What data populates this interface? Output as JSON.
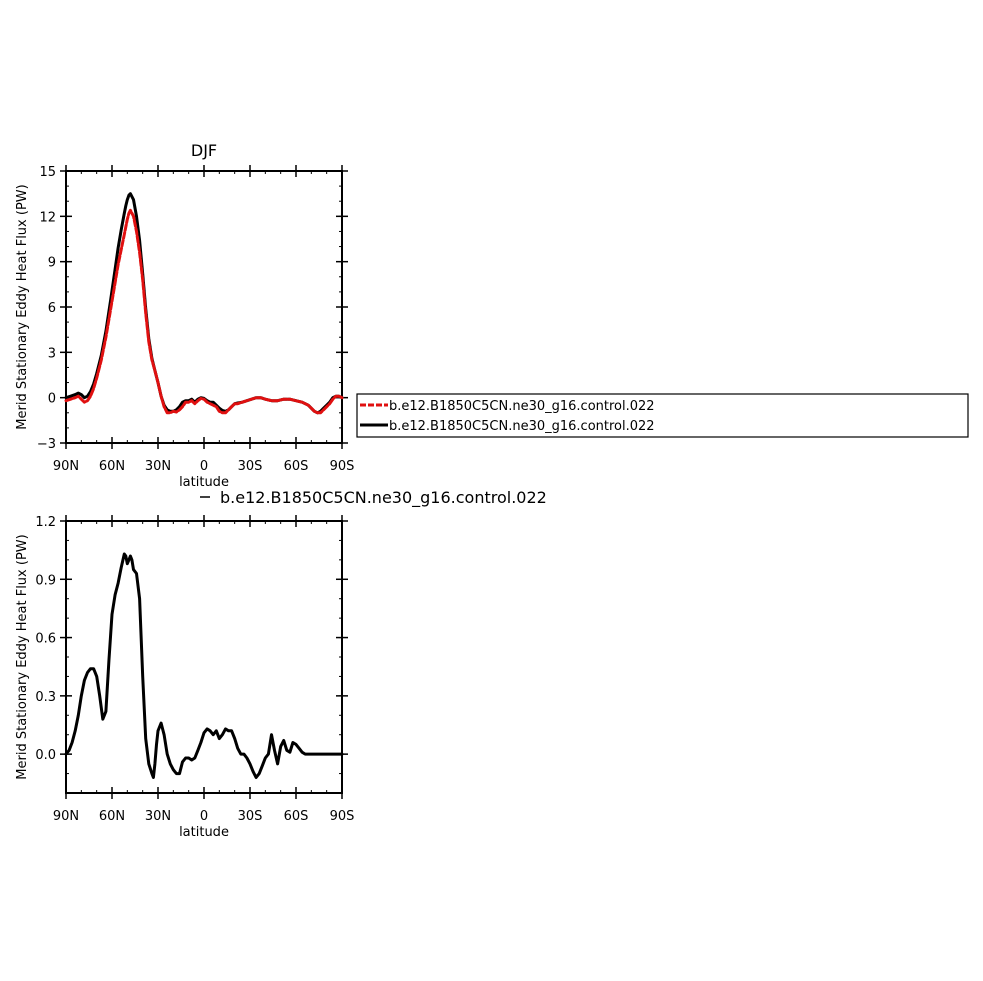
{
  "colors": {
    "ctrl_red": "#e01010",
    "ctrl_black": "#000000"
  },
  "chart_data": [
    {
      "type": "line",
      "title": "DJF",
      "xlabel": "latitude",
      "ylabel": "Merid Stationary Eddy Heat Flux (PW)",
      "xlim": [
        90,
        -90
      ],
      "ylim": [
        -3,
        15
      ],
      "xticks": [
        90,
        60,
        30,
        0,
        -30,
        -60,
        -90
      ],
      "xticklabels": [
        "90N",
        "60N",
        "30N",
        "0",
        "30S",
        "60S",
        "90S"
      ],
      "yticks": [
        -3,
        0,
        3,
        6,
        9,
        12,
        15
      ],
      "yticklabels": [
        "−3",
        "0",
        "3",
        "6",
        "9",
        "12",
        "15"
      ],
      "grid": false,
      "legend_position": "right",
      "series": [
        {
          "name": "b.e12.B1850C5CN.ne30_g16.control.022",
          "color": "#e01010",
          "dash": "dashed",
          "x": [
            90,
            87,
            84,
            82,
            80,
            78,
            76,
            74,
            72,
            70,
            67,
            64,
            61,
            58,
            56,
            54,
            52,
            51,
            50,
            49,
            48,
            46,
            44,
            42,
            40,
            38,
            36,
            34,
            32,
            30,
            28,
            26,
            24,
            22,
            20,
            18,
            16,
            14,
            12,
            10,
            8,
            6,
            4,
            2,
            0,
            -2,
            -4,
            -6,
            -8,
            -10,
            -12,
            -14,
            -16,
            -18,
            -20,
            -22,
            -25,
            -28,
            -31,
            -34,
            -37,
            -40,
            -44,
            -48,
            -52,
            -56,
            -60,
            -64,
            -68,
            -70,
            -72,
            -74,
            -76,
            -78,
            -80,
            -82,
            -84,
            -86,
            -88,
            -90
          ],
          "y": [
            -0.2,
            -0.1,
            0.0,
            0.1,
            -0.1,
            -0.3,
            -0.2,
            0.1,
            0.6,
            1.3,
            2.5,
            4.0,
            5.8,
            7.6,
            8.8,
            9.8,
            10.8,
            11.3,
            11.8,
            12.2,
            12.4,
            12.0,
            11.0,
            9.6,
            7.8,
            5.6,
            3.7,
            2.5,
            1.8,
            1.0,
            0.1,
            -0.6,
            -1.0,
            -1.0,
            -0.9,
            -0.95,
            -0.8,
            -0.6,
            -0.3,
            -0.3,
            -0.2,
            -0.4,
            -0.2,
            -0.05,
            -0.1,
            -0.3,
            -0.4,
            -0.5,
            -0.6,
            -0.9,
            -1.0,
            -1.0,
            -0.8,
            -0.6,
            -0.4,
            -0.4,
            -0.3,
            -0.2,
            -0.1,
            0.0,
            0.0,
            -0.1,
            -0.2,
            -0.2,
            -0.1,
            -0.1,
            -0.2,
            -0.3,
            -0.5,
            -0.7,
            -0.9,
            -1.0,
            -1.0,
            -0.8,
            -0.6,
            -0.4,
            -0.1,
            0.1,
            0.1,
            0.0
          ]
        },
        {
          "name": "b.e12.B1850C5CN.ne30_g16.control.022",
          "color": "#000000",
          "dash": "solid",
          "x": [
            90,
            87,
            84,
            82,
            80,
            78,
            76,
            74,
            72,
            70,
            67,
            64,
            61,
            58,
            56,
            54,
            52,
            51,
            50,
            49,
            48,
            46,
            44,
            42,
            40,
            38,
            36,
            34,
            32,
            30,
            28,
            26,
            24,
            22,
            20,
            18,
            16,
            14,
            12,
            10,
            8,
            6,
            4,
            2,
            0,
            -2,
            -4,
            -6,
            -8,
            -10,
            -12,
            -14,
            -16,
            -18,
            -20,
            -22,
            -25,
            -28,
            -31,
            -34,
            -37,
            -40,
            -44,
            -48,
            -52,
            -56,
            -60,
            -64,
            -68,
            -70,
            -72,
            -74,
            -76,
            -78,
            -80,
            -82,
            -84,
            -86,
            -88,
            -90
          ],
          "y": [
            0.0,
            0.1,
            0.2,
            0.3,
            0.2,
            0.0,
            0.1,
            0.4,
            0.9,
            1.6,
            2.8,
            4.4,
            6.4,
            8.5,
            9.9,
            11.1,
            12.2,
            12.7,
            13.1,
            13.4,
            13.5,
            13.1,
            12.0,
            10.4,
            8.2,
            5.9,
            3.9,
            2.6,
            1.8,
            1.0,
            0.1,
            -0.5,
            -0.8,
            -0.9,
            -0.9,
            -0.8,
            -0.6,
            -0.3,
            -0.2,
            -0.2,
            -0.1,
            -0.3,
            -0.1,
            0.0,
            -0.05,
            -0.2,
            -0.3,
            -0.3,
            -0.5,
            -0.7,
            -0.85,
            -0.9,
            -0.8,
            -0.6,
            -0.4,
            -0.35,
            -0.3,
            -0.2,
            -0.1,
            0.0,
            0.0,
            -0.1,
            -0.2,
            -0.2,
            -0.1,
            -0.1,
            -0.2,
            -0.3,
            -0.5,
            -0.7,
            -0.9,
            -1.0,
            -0.9,
            -0.7,
            -0.5,
            -0.3,
            0.0,
            0.1,
            0.1,
            0.0
          ]
        }
      ]
    },
    {
      "type": "line",
      "title": "",
      "subtitle": "b.e12.B1850C5CN.ne30_g16.control.022",
      "xlabel": "latitude",
      "ylabel": "Merid Stationary Eddy Heat Flux (PW)",
      "xlim": [
        90,
        -90
      ],
      "ylim": [
        -0.2,
        1.2
      ],
      "xticks": [
        90,
        60,
        30,
        0,
        -30,
        -60,
        -90
      ],
      "xticklabels": [
        "90N",
        "60N",
        "30N",
        "0",
        "30S",
        "60S",
        "90S"
      ],
      "yticks": [
        0.0,
        0.3,
        0.6,
        0.9,
        1.2
      ],
      "yticklabels": [
        "0.0",
        "0.3",
        "0.6",
        "0.9",
        "1.2"
      ],
      "grid": false,
      "series": [
        {
          "name": "",
          "color": "#000000",
          "dash": "solid",
          "x": [
            90,
            88,
            86,
            84,
            82,
            80,
            78,
            76,
            74,
            72,
            70,
            68,
            66,
            64,
            62,
            60,
            58,
            56,
            54,
            52,
            51,
            50,
            49,
            48,
            47,
            46,
            44,
            42,
            40,
            38,
            36,
            34,
            33,
            32,
            31,
            30,
            28,
            26,
            24,
            22,
            20,
            18,
            16,
            14,
            12,
            10,
            8,
            6,
            4,
            2,
            0,
            -2,
            -4,
            -6,
            -8,
            -10,
            -12,
            -14,
            -16,
            -18,
            -20,
            -22,
            -24,
            -26,
            -28,
            -30,
            -32,
            -34,
            -36,
            -38,
            -40,
            -42,
            -44,
            -46,
            -48,
            -50,
            -52,
            -54,
            -56,
            -58,
            -60,
            -62,
            -64,
            -66,
            -68,
            -70,
            -72,
            -74,
            -76,
            -78,
            -80,
            -82,
            -84,
            -86,
            -88,
            -90
          ],
          "y": [
            0.0,
            0.02,
            0.06,
            0.12,
            0.2,
            0.3,
            0.38,
            0.42,
            0.44,
            0.44,
            0.4,
            0.3,
            0.18,
            0.22,
            0.48,
            0.72,
            0.82,
            0.88,
            0.96,
            1.03,
            1.02,
            0.98,
            1.0,
            1.02,
            1.0,
            0.95,
            0.93,
            0.8,
            0.4,
            0.08,
            -0.05,
            -0.1,
            -0.12,
            -0.05,
            0.05,
            0.12,
            0.16,
            0.1,
            0.0,
            -0.05,
            -0.08,
            -0.1,
            -0.1,
            -0.04,
            -0.02,
            -0.02,
            -0.03,
            -0.02,
            0.02,
            0.06,
            0.11,
            0.13,
            0.12,
            0.1,
            0.12,
            0.08,
            0.1,
            0.13,
            0.12,
            0.12,
            0.08,
            0.03,
            0.0,
            0.0,
            -0.02,
            -0.05,
            -0.09,
            -0.12,
            -0.1,
            -0.06,
            -0.02,
            0.0,
            0.1,
            0.02,
            -0.05,
            0.04,
            0.07,
            0.02,
            0.01,
            0.06,
            0.05,
            0.03,
            0.01,
            0.0,
            0.0,
            0.0,
            0.0,
            0.0,
            0.0,
            0.0,
            0.0,
            0.0,
            0.0,
            0.0,
            0.0,
            0.0
          ]
        }
      ]
    }
  ]
}
